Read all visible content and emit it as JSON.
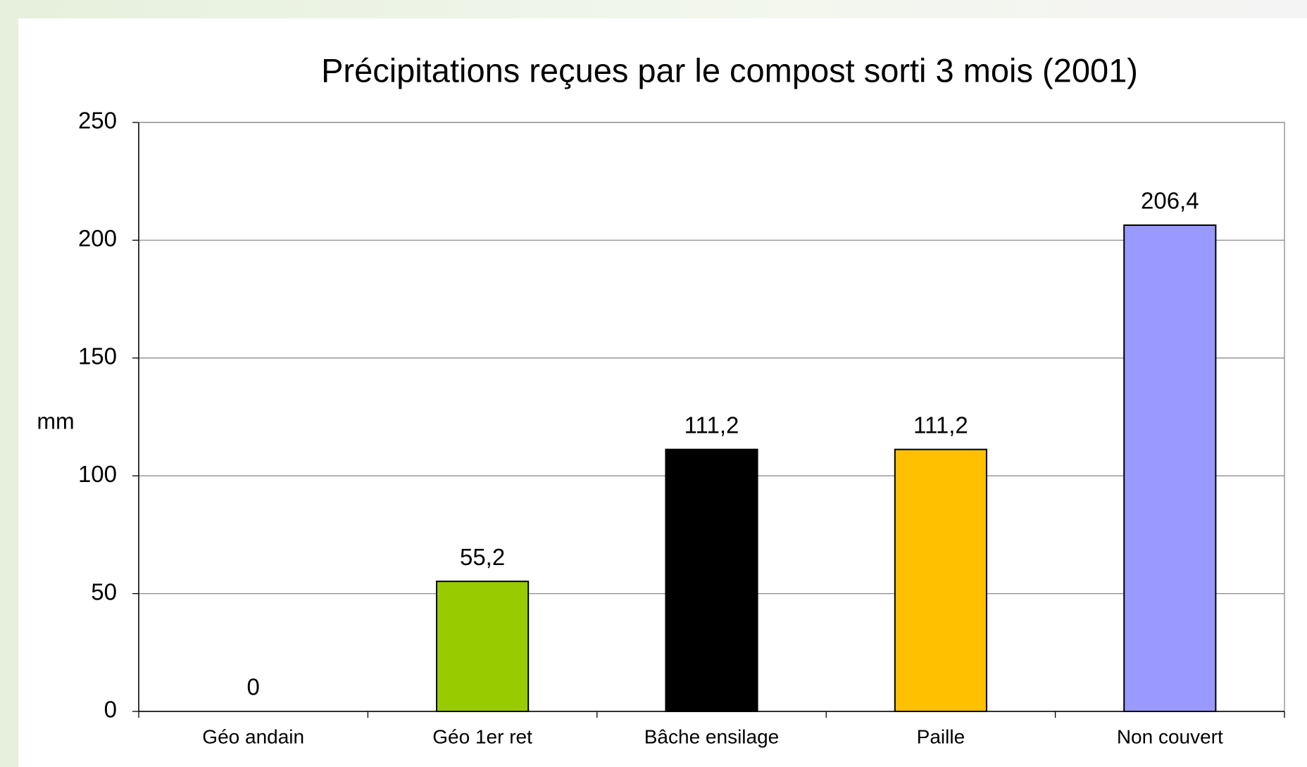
{
  "chart_data": {
    "type": "bar",
    "title": "Précipitations reçues par le compost sorti 3 mois (2001)",
    "y_label": "mm",
    "categories": [
      "Géo andain",
      "Géo 1er ret",
      "Bâche ensilage",
      "Paille",
      "Non couvert"
    ],
    "values": [
      0,
      55.2,
      111.2,
      111.2,
      206.4
    ],
    "value_labels": [
      "0",
      "55,2",
      "111,2",
      "111,2",
      "206,4"
    ],
    "colors": [
      null,
      "#99cc00",
      "#000000",
      "#ffc000",
      "#9999ff"
    ],
    "ylim": [
      0,
      250
    ],
    "yticks": [
      0,
      50,
      100,
      150,
      200,
      250
    ],
    "grid": true
  }
}
